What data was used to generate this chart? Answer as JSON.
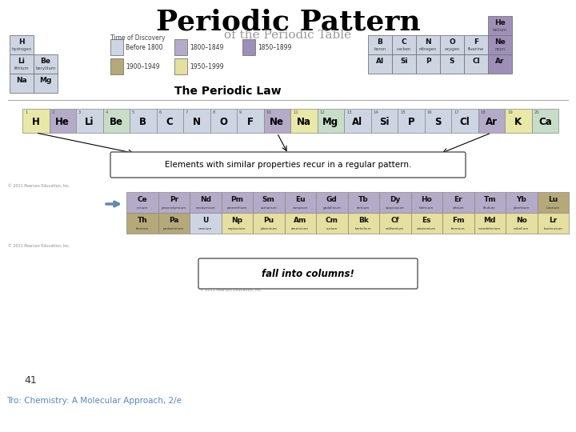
{
  "title": "Periodic Pattern",
  "page_num": "41",
  "footer": "Tro: Chemistry: A Molecular Approach, 2/e",
  "bg_color": "#ffffff",
  "title_color": "#000000",
  "title_fontsize": 26,
  "periodic_law_text": "The Periodic Law",
  "elements_text": "Elements with similar properties recur in a regular pattern.",
  "fall_text": "fall into columns!",
  "time_of_discovery": "Time of Discovery",
  "legend_items": [
    {
      "label": "Before 1800",
      "color": "#cdd5e3"
    },
    {
      "label": "1800–1849",
      "color": "#b3abc8"
    },
    {
      "label": "1850–1899",
      "color": "#9e8fb8"
    },
    {
      "label": "1900–1949",
      "color": "#b5a87a"
    },
    {
      "label": "1950–1999",
      "color": "#e5dfa0"
    }
  ],
  "top_left_elements": [
    {
      "symbol": "H",
      "name": "hydrogen",
      "color": "#cdd5e3",
      "row": 0,
      "col": 0
    },
    {
      "symbol": "Li",
      "name": "lithium",
      "color": "#cdd5e3",
      "row": 1,
      "col": 0
    },
    {
      "symbol": "Be",
      "name": "beryllium",
      "color": "#cdd5e3",
      "row": 1,
      "col": 1
    },
    {
      "symbol": "Na",
      "name": "",
      "color": "#cdd5e3",
      "row": 2,
      "col": 0
    },
    {
      "symbol": "Mg",
      "name": "",
      "color": "#cdd5e3",
      "row": 2,
      "col": 1
    }
  ],
  "top_right_elements": [
    {
      "symbol": "He",
      "name": "helium",
      "color": "#9e8fb8",
      "row": 0,
      "col": 5
    },
    {
      "symbol": "B",
      "name": "boron",
      "color": "#cdd5e3",
      "row": 1,
      "col": 0
    },
    {
      "symbol": "C",
      "name": "carbon",
      "color": "#cdd5e3",
      "row": 1,
      "col": 1
    },
    {
      "symbol": "N",
      "name": "nitrogen",
      "color": "#cdd5e3",
      "row": 1,
      "col": 2
    },
    {
      "symbol": "O",
      "name": "oxygen",
      "color": "#cdd5e3",
      "row": 1,
      "col": 3
    },
    {
      "symbol": "F",
      "name": "fluorine",
      "color": "#cdd5e3",
      "row": 1,
      "col": 4
    },
    {
      "symbol": "Ne",
      "name": "neon",
      "color": "#9e8fb8",
      "row": 1,
      "col": 5
    },
    {
      "symbol": "Al",
      "name": "",
      "color": "#cdd5e3",
      "row": 2,
      "col": 0
    },
    {
      "symbol": "Si",
      "name": "",
      "color": "#cdd5e3",
      "row": 2,
      "col": 1
    },
    {
      "symbol": "P",
      "name": "",
      "color": "#cdd5e3",
      "row": 2,
      "col": 2
    },
    {
      "symbol": "S",
      "name": "",
      "color": "#cdd5e3",
      "row": 2,
      "col": 3
    },
    {
      "symbol": "Cl",
      "name": "",
      "color": "#cdd5e3",
      "row": 2,
      "col": 4
    },
    {
      "symbol": "Ar",
      "name": "",
      "color": "#9e8fb8",
      "row": 2,
      "col": 5
    }
  ],
  "strip_elements": [
    {
      "num": "1",
      "symbol": "H",
      "color": "#e8e8a8"
    },
    {
      "num": "2",
      "symbol": "He",
      "color": "#b3abc8"
    },
    {
      "num": "3",
      "symbol": "Li",
      "color": "#cdd5e3"
    },
    {
      "num": "4",
      "symbol": "Be",
      "color": "#c8ddc8"
    },
    {
      "num": "5",
      "symbol": "B",
      "color": "#cdd5e3"
    },
    {
      "num": "6",
      "symbol": "C",
      "color": "#cdd5e3"
    },
    {
      "num": "7",
      "symbol": "N",
      "color": "#cdd5e3"
    },
    {
      "num": "8",
      "symbol": "O",
      "color": "#cdd5e3"
    },
    {
      "num": "9",
      "symbol": "F",
      "color": "#cdd5e3"
    },
    {
      "num": "10",
      "symbol": "Ne",
      "color": "#b3abc8"
    },
    {
      "num": "11",
      "symbol": "Na",
      "color": "#e8e8a8"
    },
    {
      "num": "12",
      "symbol": "Mg",
      "color": "#c8ddc8"
    },
    {
      "num": "13",
      "symbol": "Al",
      "color": "#cdd5e3"
    },
    {
      "num": "14",
      "symbol": "Si",
      "color": "#cdd5e3"
    },
    {
      "num": "15",
      "symbol": "P",
      "color": "#cdd5e3"
    },
    {
      "num": "16",
      "symbol": "S",
      "color": "#cdd5e3"
    },
    {
      "num": "17",
      "symbol": "Cl",
      "color": "#cdd5e3"
    },
    {
      "num": "18",
      "symbol": "Ar",
      "color": "#b3abc8"
    },
    {
      "num": "19",
      "symbol": "K",
      "color": "#e8e8a8"
    },
    {
      "num": "20",
      "symbol": "Ca",
      "color": "#c8ddc8"
    }
  ],
  "lanthanides": [
    {
      "symbol": "Ce",
      "name": "cerium",
      "color": "#b3abc8"
    },
    {
      "symbol": "Pr",
      "name": "praseodymium",
      "color": "#b3abc8"
    },
    {
      "symbol": "Nd",
      "name": "neodymium",
      "color": "#b3abc8"
    },
    {
      "symbol": "Pm",
      "name": "promethium",
      "color": "#b3abc8"
    },
    {
      "symbol": "Sm",
      "name": "samarium",
      "color": "#b3abc8"
    },
    {
      "symbol": "Eu",
      "name": "europium",
      "color": "#b3abc8"
    },
    {
      "symbol": "Gd",
      "name": "gadolinium",
      "color": "#b3abc8"
    },
    {
      "symbol": "Tb",
      "name": "terbium",
      "color": "#b3abc8"
    },
    {
      "symbol": "Dy",
      "name": "dysprosium",
      "color": "#b3abc8"
    },
    {
      "symbol": "Ho",
      "name": "holmium",
      "color": "#b3abc8"
    },
    {
      "symbol": "Er",
      "name": "erbium",
      "color": "#b3abc8"
    },
    {
      "symbol": "Tm",
      "name": "thulium",
      "color": "#b3abc8"
    },
    {
      "symbol": "Yb",
      "name": "ytterbium",
      "color": "#b3abc8"
    },
    {
      "symbol": "Lu",
      "name": "lutetium",
      "color": "#b5a87a"
    }
  ],
  "actinides": [
    {
      "symbol": "Th",
      "name": "thorium",
      "color": "#b5a87a"
    },
    {
      "symbol": "Pa",
      "name": "protactinium",
      "color": "#b5a87a"
    },
    {
      "symbol": "U",
      "name": "uranium",
      "color": "#cdd5e3"
    },
    {
      "symbol": "Np",
      "name": "neptunium",
      "color": "#e5dfa0"
    },
    {
      "symbol": "Pu",
      "name": "plutonium",
      "color": "#e5dfa0"
    },
    {
      "symbol": "Am",
      "name": "americium",
      "color": "#e5dfa0"
    },
    {
      "symbol": "Cm",
      "name": "curium",
      "color": "#e5dfa0"
    },
    {
      "symbol": "Bk",
      "name": "berkelium",
      "color": "#e5dfa0"
    },
    {
      "symbol": "Cf",
      "name": "californium",
      "color": "#e5dfa0"
    },
    {
      "symbol": "Es",
      "name": "einsteinium",
      "color": "#e5dfa0"
    },
    {
      "symbol": "Fm",
      "name": "fermium",
      "color": "#e5dfa0"
    },
    {
      "symbol": "Md",
      "name": "mendelevium",
      "color": "#e5dfa0"
    },
    {
      "symbol": "No",
      "name": "nobelium",
      "color": "#e5dfa0"
    },
    {
      "symbol": "Lr",
      "name": "lawrencium",
      "color": "#e5dfa0"
    }
  ],
  "copyright": "© 2011 Pearson Education, Inc.",
  "copyright2": "© 2011 Pearson Education, Inc."
}
